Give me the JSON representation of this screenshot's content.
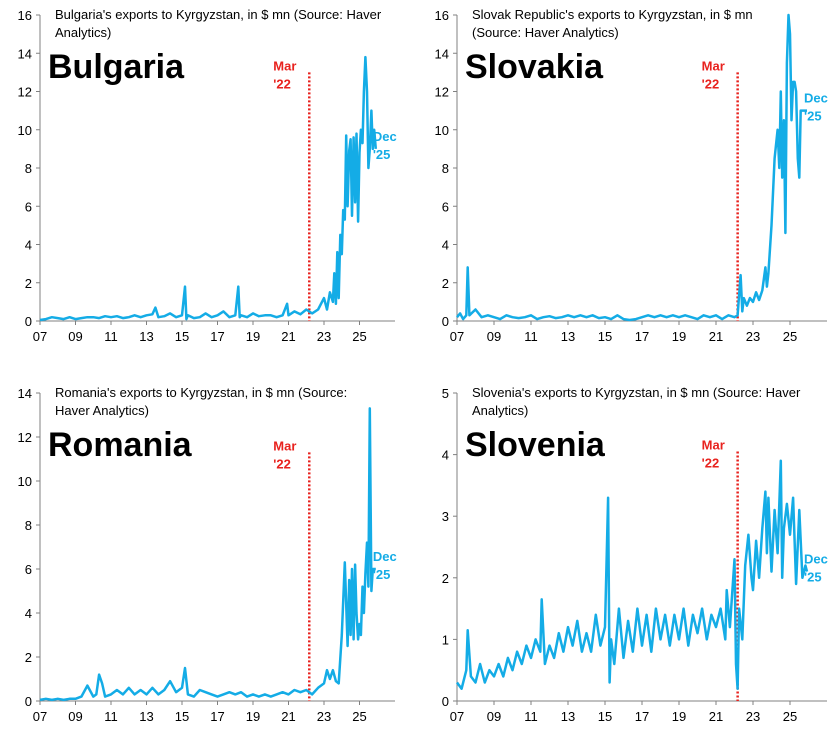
{
  "colors": {
    "series": "#14ACE6",
    "marker": "#E8221E",
    "axis": "#808080",
    "text": "#000000"
  },
  "chart_data": [
    {
      "type": "line",
      "title": "Bulgaria's exports to Kyrgyzstan, in $ mn (Source: Haver Analytics)",
      "title_lines": [
        "Bulgaria's exports to Kyrgyzstan, in $ mn (Source: Haver",
        "Analytics)"
      ],
      "country": "Bulgaria",
      "ylim": [
        0,
        16
      ],
      "yticks": [
        0,
        2,
        4,
        6,
        8,
        10,
        12,
        14,
        16
      ],
      "xlim": [
        2007.0,
        2027.0
      ],
      "xticks": [
        2007,
        2009,
        2011,
        2013,
        2015,
        2017,
        2019,
        2021,
        2023,
        2025
      ],
      "xtick_labels": [
        "07",
        "09",
        "11",
        "13",
        "15",
        "17",
        "19",
        "21",
        "23",
        "25"
      ],
      "vline": {
        "x": 2022.17,
        "label1": "Mar",
        "label2": "'22",
        "ymax": 13
      },
      "end_label": {
        "label1": "Dec",
        "label2": "'25"
      },
      "series": [
        {
          "name": "Exports to Kyrgyzstan",
          "x": [
            2007.0,
            2007.33,
            2007.67,
            2008.0,
            2008.33,
            2008.67,
            2009.0,
            2009.33,
            2009.67,
            2010.0,
            2010.33,
            2010.67,
            2011.0,
            2011.33,
            2011.67,
            2012.0,
            2012.33,
            2012.67,
            2013.0,
            2013.33,
            2013.5,
            2013.67,
            2014.0,
            2014.33,
            2014.67,
            2015.0,
            2015.17,
            2015.25,
            2015.33,
            2015.67,
            2016.0,
            2016.33,
            2016.67,
            2017.0,
            2017.33,
            2017.67,
            2018.0,
            2018.17,
            2018.25,
            2018.33,
            2018.67,
            2019.0,
            2019.33,
            2019.67,
            2020.0,
            2020.33,
            2020.67,
            2020.92,
            2021.0,
            2021.33,
            2021.67,
            2022.0,
            2022.33,
            2022.67,
            2023.0,
            2023.17,
            2023.33,
            2023.5,
            2023.58,
            2023.67,
            2023.75,
            2023.83,
            2023.92,
            2024.0,
            2024.08,
            2024.17,
            2024.25,
            2024.33,
            2024.42,
            2024.5,
            2024.58,
            2024.67,
            2024.75,
            2024.83,
            2024.92,
            2025.0,
            2025.08,
            2025.17,
            2025.25,
            2025.33,
            2025.42,
            2025.5,
            2025.58,
            2025.67,
            2025.75,
            2025.83,
            2025.92
          ],
          "values": [
            0.05,
            0.1,
            0.2,
            0.15,
            0.1,
            0.2,
            0.1,
            0.15,
            0.2,
            0.2,
            0.15,
            0.25,
            0.2,
            0.25,
            0.15,
            0.2,
            0.3,
            0.2,
            0.3,
            0.35,
            0.7,
            0.2,
            0.25,
            0.4,
            0.2,
            0.3,
            1.8,
            0.1,
            0.3,
            0.15,
            0.2,
            0.4,
            0.2,
            0.3,
            0.5,
            0.2,
            0.3,
            1.8,
            0.2,
            0.3,
            0.2,
            0.4,
            0.25,
            0.3,
            0.3,
            0.2,
            0.3,
            0.9,
            0.3,
            0.5,
            0.35,
            0.6,
            0.4,
            0.6,
            1.2,
            0.6,
            1.5,
            1.0,
            2.5,
            0.9,
            3.6,
            1.2,
            4.5,
            3.5,
            5.8,
            5.3,
            9.7,
            6.0,
            8.9,
            9.5,
            5.5,
            9.6,
            6.2,
            9.8,
            5.2,
            8.8,
            10.0,
            9.3,
            12.0,
            13.8,
            12.0,
            8.0,
            9.0,
            11.0,
            9.0,
            10.0,
            9.0
          ]
        }
      ]
    },
    {
      "type": "line",
      "title": "Slovak Republic's exports to Kyrgyzstan, in $ mn (Source: Haver Analytics)",
      "title_lines": [
        "Slovak Republic's exports to Kyrgyzstan, in $ mn",
        "(Source: Haver Analytics)"
      ],
      "country": "Slovakia",
      "ylim": [
        0,
        16
      ],
      "yticks": [
        0,
        2,
        4,
        6,
        8,
        10,
        12,
        14,
        16
      ],
      "xlim": [
        2007.0,
        2027.0
      ],
      "xticks": [
        2007,
        2009,
        2011,
        2013,
        2015,
        2017,
        2019,
        2021,
        2023,
        2025
      ],
      "xtick_labels": [
        "07",
        "09",
        "11",
        "13",
        "15",
        "17",
        "19",
        "21",
        "23",
        "25"
      ],
      "vline": {
        "x": 2022.17,
        "label1": "Mar",
        "label2": "'22",
        "ymax": 13
      },
      "end_label": {
        "label1": "Dec",
        "label2": "'25"
      },
      "series": [
        {
          "name": "Exports to Kyrgyzstan",
          "x": [
            2007.0,
            2007.17,
            2007.33,
            2007.5,
            2007.58,
            2007.67,
            2008.0,
            2008.33,
            2008.67,
            2009.0,
            2009.33,
            2009.67,
            2010.0,
            2010.33,
            2010.67,
            2011.0,
            2011.33,
            2011.67,
            2012.0,
            2012.33,
            2012.67,
            2013.0,
            2013.33,
            2013.67,
            2014.0,
            2014.33,
            2014.67,
            2015.0,
            2015.33,
            2015.67,
            2016.0,
            2016.33,
            2016.67,
            2017.0,
            2017.33,
            2017.67,
            2018.0,
            2018.33,
            2018.67,
            2019.0,
            2019.33,
            2019.67,
            2020.0,
            2020.33,
            2020.67,
            2021.0,
            2021.33,
            2021.67,
            2022.0,
            2022.17,
            2022.33,
            2022.42,
            2022.5,
            2022.67,
            2022.83,
            2023.0,
            2023.17,
            2023.33,
            2023.5,
            2023.67,
            2023.75,
            2023.83,
            2024.0,
            2024.17,
            2024.33,
            2024.42,
            2024.5,
            2024.58,
            2024.67,
            2024.75,
            2024.83,
            2024.92,
            2025.0,
            2025.08,
            2025.17,
            2025.25,
            2025.33,
            2025.42,
            2025.5,
            2025.58,
            2025.67,
            2025.75,
            2025.83,
            2025.92
          ],
          "values": [
            0.2,
            0.4,
            0.1,
            0.3,
            2.8,
            0.3,
            0.6,
            0.2,
            0.3,
            0.2,
            0.1,
            0.3,
            0.2,
            0.15,
            0.2,
            0.3,
            0.1,
            0.2,
            0.25,
            0.15,
            0.2,
            0.3,
            0.2,
            0.3,
            0.2,
            0.3,
            0.15,
            0.2,
            0.1,
            0.3,
            0.1,
            0.05,
            0.1,
            0.2,
            0.3,
            0.2,
            0.3,
            0.2,
            0.3,
            0.2,
            0.3,
            0.2,
            0.1,
            0.3,
            0.2,
            0.3,
            0.1,
            0.3,
            0.2,
            0.3,
            2.4,
            0.5,
            1.2,
            0.8,
            1.2,
            1.0,
            1.5,
            1.1,
            1.6,
            2.8,
            1.8,
            2.5,
            5.0,
            8.5,
            10.0,
            8.0,
            12.0,
            7.5,
            10.5,
            4.6,
            13.5,
            16.0,
            15.0,
            10.5,
            12.5,
            12.5,
            12.0,
            8.5,
            7.5,
            11.0,
            11.0,
            11.0,
            11.0,
            11.0
          ]
        }
      ]
    },
    {
      "type": "line",
      "title": "Romania's exports to Kyrgyzstan, in $ mn (Source: Haver Analytics)",
      "title_lines": [
        "Romania's exports to Kyrgyzstan, in $ mn (Source:",
        "Haver Analytics)"
      ],
      "country": "Romania",
      "ylim": [
        0,
        14
      ],
      "yticks": [
        0,
        2,
        4,
        6,
        8,
        10,
        12,
        14
      ],
      "xlim": [
        2007.0,
        2027.0
      ],
      "xticks": [
        2007,
        2009,
        2011,
        2013,
        2015,
        2017,
        2019,
        2021,
        2023,
        2025
      ],
      "xtick_labels": [
        "07",
        "09",
        "11",
        "13",
        "15",
        "17",
        "19",
        "21",
        "23",
        "25"
      ],
      "vline": {
        "x": 2022.17,
        "label1": "Mar",
        "label2": "'22",
        "ymax": 11.3
      },
      "end_label": {
        "label1": "Dec",
        "label2": "'25"
      },
      "series": [
        {
          "name": "Exports to Kyrgyzstan",
          "x": [
            2007.0,
            2007.33,
            2007.67,
            2008.0,
            2008.33,
            2008.67,
            2009.0,
            2009.33,
            2009.67,
            2010.0,
            2010.17,
            2010.33,
            2010.5,
            2010.67,
            2011.0,
            2011.33,
            2011.67,
            2012.0,
            2012.33,
            2012.67,
            2013.0,
            2013.33,
            2013.67,
            2014.0,
            2014.33,
            2014.67,
            2015.0,
            2015.17,
            2015.33,
            2015.67,
            2016.0,
            2016.33,
            2016.67,
            2017.0,
            2017.33,
            2017.67,
            2018.0,
            2018.33,
            2018.67,
            2019.0,
            2019.33,
            2019.67,
            2020.0,
            2020.33,
            2020.67,
            2021.0,
            2021.33,
            2021.67,
            2022.0,
            2022.33,
            2022.67,
            2023.0,
            2023.17,
            2023.33,
            2023.5,
            2023.67,
            2023.83,
            2024.0,
            2024.17,
            2024.33,
            2024.42,
            2024.5,
            2024.58,
            2024.67,
            2024.75,
            2024.83,
            2024.92,
            2025.0,
            2025.08,
            2025.17,
            2025.25,
            2025.33,
            2025.42,
            2025.5,
            2025.58,
            2025.67,
            2025.75,
            2025.83,
            2025.92
          ],
          "values": [
            0.05,
            0.1,
            0.05,
            0.1,
            0.05,
            0.1,
            0.1,
            0.2,
            0.7,
            0.2,
            0.3,
            1.2,
            0.8,
            0.2,
            0.3,
            0.5,
            0.3,
            0.6,
            0.3,
            0.5,
            0.3,
            0.6,
            0.3,
            0.5,
            0.9,
            0.4,
            0.6,
            1.5,
            0.3,
            0.2,
            0.5,
            0.4,
            0.3,
            0.2,
            0.3,
            0.4,
            0.3,
            0.4,
            0.2,
            0.3,
            0.2,
            0.3,
            0.2,
            0.3,
            0.4,
            0.3,
            0.5,
            0.4,
            0.5,
            0.3,
            0.6,
            0.8,
            1.4,
            1.0,
            1.4,
            0.9,
            0.8,
            3.0,
            6.3,
            2.5,
            5.5,
            3.0,
            6.0,
            2.8,
            6.2,
            4.0,
            2.8,
            3.5,
            3.0,
            5.2,
            4.0,
            5.8,
            7.2,
            5.2,
            13.3,
            5.0,
            6.0,
            6.0,
            6.0
          ]
        }
      ]
    },
    {
      "type": "line",
      "title": "Slovenia's exports to Kyrgyzstan, in $ mn (Source: Haver Analytics)",
      "title_lines": [
        "Slovenia's exports to Kyrgyzstan, in $ mn (Source: Haver",
        "Analytics)"
      ],
      "country": "Slovenia",
      "ylim": [
        0,
        5
      ],
      "yticks": [
        0,
        1,
        2,
        3,
        4,
        5
      ],
      "xlim": [
        2007.0,
        2027.0
      ],
      "xticks": [
        2007,
        2009,
        2011,
        2013,
        2015,
        2017,
        2019,
        2021,
        2023,
        2025
      ],
      "xtick_labels": [
        "07",
        "09",
        "11",
        "13",
        "15",
        "17",
        "19",
        "21",
        "23",
        "25"
      ],
      "vline": {
        "x": 2022.17,
        "label1": "Mar",
        "label2": "'22",
        "ymax": 4.05
      },
      "end_label": {
        "label1": "Dec",
        "label2": "'25"
      },
      "series": [
        {
          "name": "Exports to Kyrgyzstan",
          "x": [
            2007.0,
            2007.25,
            2007.5,
            2007.58,
            2007.75,
            2008.0,
            2008.25,
            2008.5,
            2008.75,
            2009.0,
            2009.25,
            2009.5,
            2009.75,
            2010.0,
            2010.25,
            2010.5,
            2010.75,
            2011.0,
            2011.25,
            2011.5,
            2011.58,
            2011.75,
            2012.0,
            2012.25,
            2012.5,
            2012.75,
            2013.0,
            2013.25,
            2013.5,
            2013.75,
            2014.0,
            2014.25,
            2014.5,
            2014.75,
            2015.0,
            2015.17,
            2015.25,
            2015.33,
            2015.5,
            2015.75,
            2016.0,
            2016.25,
            2016.5,
            2016.75,
            2017.0,
            2017.25,
            2017.5,
            2017.75,
            2018.0,
            2018.25,
            2018.5,
            2018.75,
            2019.0,
            2019.25,
            2019.5,
            2019.75,
            2020.0,
            2020.25,
            2020.5,
            2020.75,
            2021.0,
            2021.25,
            2021.5,
            2021.58,
            2021.75,
            2022.0,
            2022.08,
            2022.17,
            2022.25,
            2022.42,
            2022.58,
            2022.75,
            2022.92,
            2023.0,
            2023.17,
            2023.33,
            2023.5,
            2023.67,
            2023.75,
            2023.83,
            2024.0,
            2024.17,
            2024.33,
            2024.5,
            2024.58,
            2024.67,
            2024.83,
            2025.0,
            2025.17,
            2025.33,
            2025.5,
            2025.67,
            2025.83,
            2025.92
          ],
          "values": [
            0.3,
            0.2,
            0.5,
            1.15,
            0.4,
            0.3,
            0.6,
            0.3,
            0.5,
            0.4,
            0.6,
            0.4,
            0.7,
            0.5,
            0.8,
            0.6,
            0.9,
            0.7,
            1.0,
            0.8,
            1.65,
            0.6,
            0.9,
            0.7,
            1.1,
            0.8,
            1.2,
            0.9,
            1.3,
            0.8,
            1.1,
            0.8,
            1.4,
            0.9,
            1.2,
            3.3,
            0.3,
            1.0,
            0.6,
            1.5,
            0.7,
            1.3,
            0.8,
            1.5,
            0.9,
            1.4,
            0.8,
            1.5,
            1.0,
            1.4,
            0.9,
            1.4,
            1.0,
            1.5,
            0.9,
            1.4,
            1.1,
            1.5,
            1.0,
            1.4,
            1.2,
            1.5,
            1.0,
            1.8,
            1.2,
            2.3,
            0.6,
            0.2,
            1.5,
            1.0,
            2.2,
            2.7,
            2.0,
            1.8,
            2.6,
            2.0,
            2.8,
            3.4,
            2.4,
            3.3,
            2.1,
            3.1,
            2.4,
            3.9,
            2.0,
            2.8,
            3.2,
            2.7,
            3.3,
            1.9,
            3.1,
            2.0,
            2.2,
            2.1
          ]
        }
      ]
    }
  ]
}
